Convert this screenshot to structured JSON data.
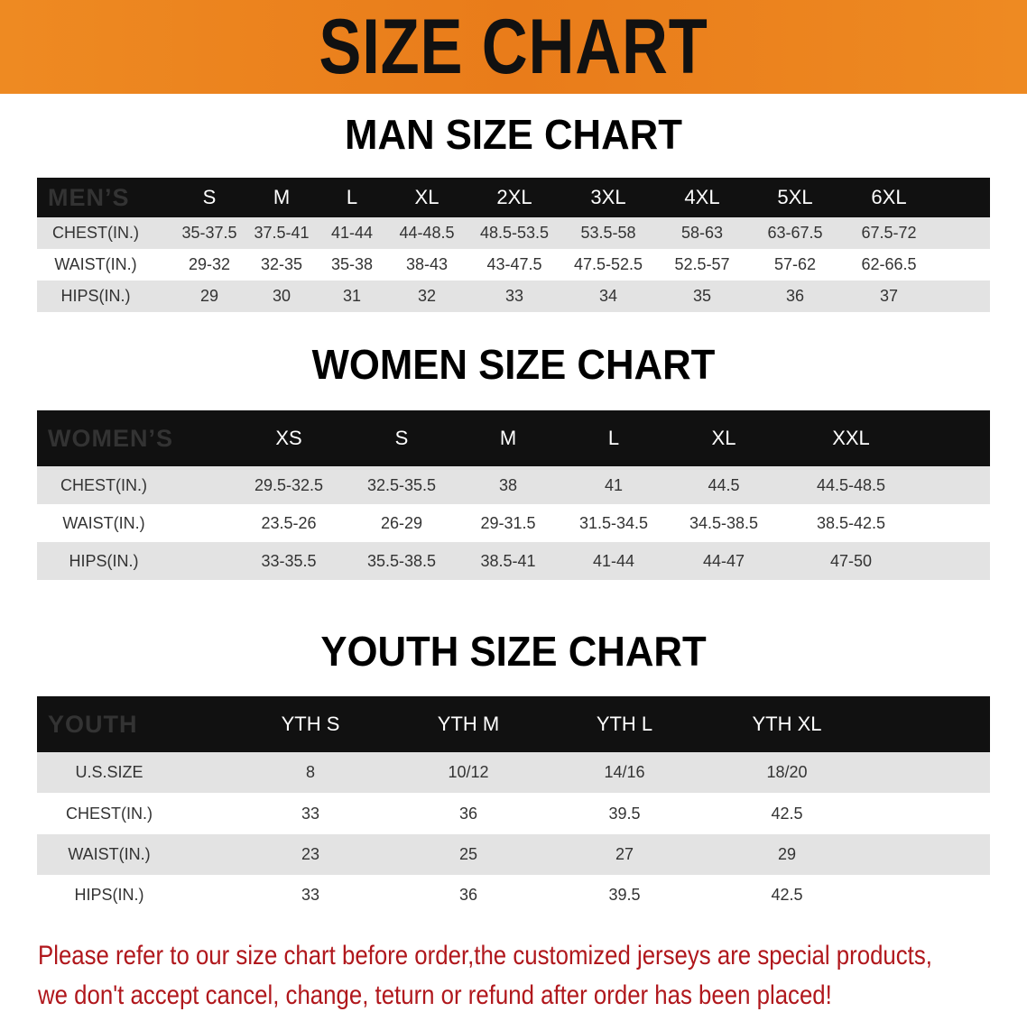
{
  "title": "SIZE CHART",
  "colors": {
    "banner": "#e97c1a",
    "header_row": "#111111",
    "shaded_row": "#e3e3e3",
    "note": "#b0171c"
  },
  "men": {
    "section_title": "MAN SIZE CHART",
    "header": [
      "MEN’S",
      "S",
      "M",
      "L",
      "XL",
      "2XL",
      "3XL",
      "4XL",
      "5XL",
      "6XL"
    ],
    "rows": [
      [
        "CHEST(IN.)",
        "35-37.5",
        "37.5-41",
        "41-44",
        "44-48.5",
        "48.5-53.5",
        "53.5-58",
        "58-63",
        "63-67.5",
        "67.5-72"
      ],
      [
        "WAIST(IN.)",
        "29-32",
        "32-35",
        "35-38",
        "38-43",
        "43-47.5",
        "47.5-52.5",
        "52.5-57",
        "57-62",
        "62-66.5"
      ],
      [
        "HIPS(IN.)",
        "29",
        "30",
        "31",
        "32",
        "33",
        "34",
        "35",
        "36",
        "37"
      ]
    ]
  },
  "women": {
    "section_title": "WOMEN SIZE CHART",
    "header": [
      "WOMEN’S",
      "XS",
      "S",
      "M",
      "L",
      "XL",
      "XXL"
    ],
    "rows": [
      [
        "CHEST(IN.)",
        "29.5-32.5",
        "32.5-35.5",
        "38",
        "41",
        "44.5",
        "44.5-48.5"
      ],
      [
        "WAIST(IN.)",
        "23.5-26",
        "26-29",
        "29-31.5",
        "31.5-34.5",
        "34.5-38.5",
        "38.5-42.5"
      ],
      [
        "HIPS(IN.)",
        "33-35.5",
        "35.5-38.5",
        "38.5-41",
        "41-44",
        "44-47",
        "47-50"
      ]
    ]
  },
  "youth": {
    "section_title": "YOUTH SIZE CHART",
    "header": [
      "YOUTH",
      "YTH S",
      "YTH M",
      "YTH L",
      "YTH XL"
    ],
    "rows": [
      [
        "U.S.SIZE",
        "8",
        "10/12",
        "14/16",
        "18/20"
      ],
      [
        "CHEST(IN.)",
        "33",
        "36",
        "39.5",
        "42.5"
      ],
      [
        "WAIST(IN.)",
        "23",
        "25",
        "27",
        "29"
      ],
      [
        "HIPS(IN.)",
        "33",
        "36",
        "39.5",
        "42.5"
      ]
    ]
  },
  "note": [
    "Please refer to our size chart before order,the customized jerseys are special products,",
    "we don't accept cancel, change, teturn or refund after order has been placed!"
  ]
}
